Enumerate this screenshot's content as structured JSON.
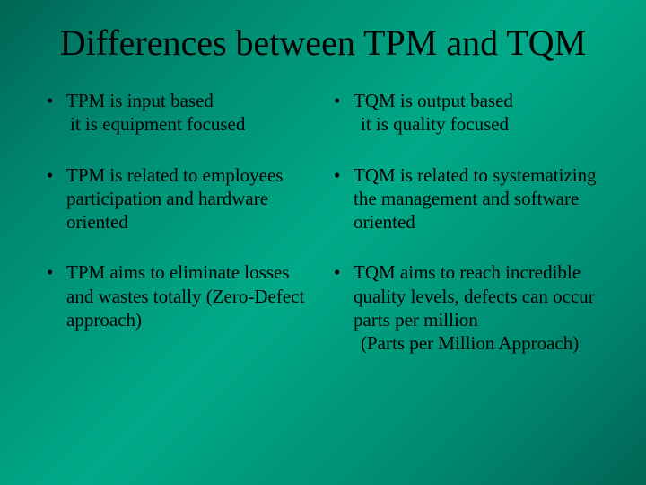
{
  "slide": {
    "title": "Differences between TPM and TQM",
    "left_column": {
      "items": [
        {
          "main": "TPM is input based",
          "sub": "it is equipment focused"
        },
        {
          "main": "TPM is related to employees participation and hardware oriented",
          "sub": ""
        },
        {
          "main": "TPM aims to eliminate losses and wastes totally (Zero-Defect approach)",
          "sub": ""
        }
      ]
    },
    "right_column": {
      "items": [
        {
          "main": "TQM is output based",
          "sub": "it is quality focused"
        },
        {
          "main": "TQM is related to systematizing the management and software oriented",
          "sub": ""
        },
        {
          "main": "TQM aims to reach incredible quality levels, defects can occur parts per million",
          "sub": "(Parts per Million Approach)"
        }
      ]
    }
  },
  "styling": {
    "background_gradient_start": "#006655",
    "background_gradient_mid": "#00aa88",
    "text_color": "#000000",
    "title_fontsize": 40,
    "body_fontsize": 21,
    "font_family": "Times New Roman",
    "bullet_marker": "•",
    "slide_width": 720,
    "slide_height": 540
  }
}
